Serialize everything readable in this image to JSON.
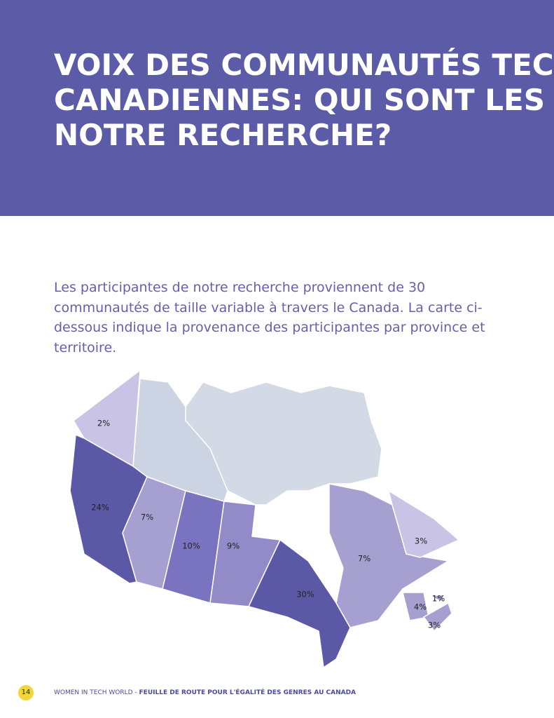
{
  "header": {
    "title_lines": [
      "VOIX DES COMMUNAUTÉS TECH",
      "CANADIENNES: QUI SONT LES",
      "NOTRE RECHERCHE?"
    ]
  },
  "intro": "Les participantes de notre recherche proviennent de 30 communautés de taille variable à travers le Canada. La carte ci-dessous indique la provenance des participantes par province et territoire.",
  "map": {
    "labels": [
      "2%",
      "24%",
      "7%",
      "10%",
      "9%",
      "30%",
      "7%",
      "3%",
      "4%",
      "1%",
      "3%"
    ]
  },
  "footer": {
    "page": "14",
    "brand": "WOMEN IN TECH WORLD - ",
    "subtitle": "FEUILLE DE ROUTE POUR L'ÉGALITÉ DES GENRES AU CANADA"
  }
}
